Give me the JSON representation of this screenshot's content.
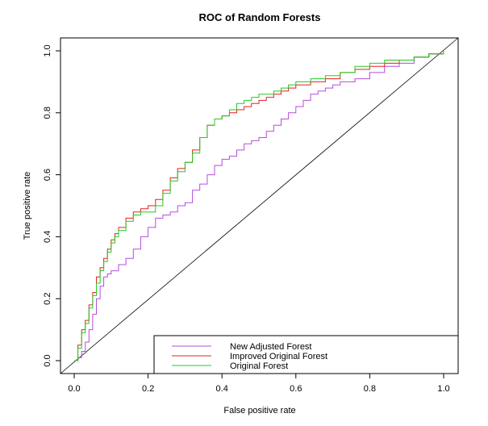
{
  "chart_data": {
    "type": "line",
    "title": "ROC of Random Forests",
    "xlabel": "False positive rate",
    "ylabel": "True positive rate",
    "xlim": [
      0,
      1
    ],
    "ylim": [
      0,
      1
    ],
    "xticks": [
      "0.0",
      "0.2",
      "0.4",
      "0.6",
      "0.8",
      "1.0"
    ],
    "yticks": [
      "0.0",
      "0.2",
      "0.4",
      "0.6",
      "0.8",
      "1.0"
    ],
    "grid": false,
    "legend_position": "bottom-right",
    "reference_line": {
      "x": [
        0,
        1
      ],
      "y": [
        0,
        1
      ],
      "color": "#000000"
    },
    "series": [
      {
        "name": "New Adjusted Forest",
        "color": "#b44ddb",
        "x": [
          0,
          0.01,
          0.02,
          0.03,
          0.04,
          0.05,
          0.06,
          0.07,
          0.08,
          0.09,
          0.1,
          0.12,
          0.14,
          0.16,
          0.18,
          0.2,
          0.22,
          0.24,
          0.26,
          0.28,
          0.3,
          0.32,
          0.34,
          0.36,
          0.38,
          0.4,
          0.42,
          0.44,
          0.46,
          0.48,
          0.5,
          0.52,
          0.54,
          0.56,
          0.58,
          0.6,
          0.62,
          0.64,
          0.66,
          0.68,
          0.7,
          0.72,
          0.74,
          0.76,
          0.8,
          0.84,
          0.88,
          0.92,
          0.96,
          1.0
        ],
        "y": [
          0,
          0.01,
          0.03,
          0.06,
          0.1,
          0.15,
          0.2,
          0.24,
          0.27,
          0.28,
          0.29,
          0.31,
          0.33,
          0.36,
          0.4,
          0.43,
          0.46,
          0.47,
          0.48,
          0.5,
          0.51,
          0.55,
          0.57,
          0.6,
          0.63,
          0.65,
          0.66,
          0.68,
          0.7,
          0.71,
          0.72,
          0.74,
          0.76,
          0.78,
          0.8,
          0.82,
          0.84,
          0.86,
          0.87,
          0.88,
          0.89,
          0.9,
          0.9,
          0.91,
          0.93,
          0.95,
          0.96,
          0.98,
          0.99,
          1.0
        ]
      },
      {
        "name": "Improved Original Forest",
        "color": "#e52020",
        "x": [
          0,
          0.01,
          0.02,
          0.03,
          0.04,
          0.05,
          0.06,
          0.07,
          0.08,
          0.09,
          0.1,
          0.11,
          0.12,
          0.14,
          0.16,
          0.18,
          0.2,
          0.22,
          0.24,
          0.26,
          0.28,
          0.3,
          0.32,
          0.34,
          0.36,
          0.38,
          0.4,
          0.42,
          0.44,
          0.46,
          0.48,
          0.5,
          0.52,
          0.54,
          0.56,
          0.58,
          0.6,
          0.64,
          0.68,
          0.72,
          0.76,
          0.8,
          0.84,
          0.88,
          0.92,
          0.96,
          1.0
        ],
        "y": [
          0,
          0.05,
          0.1,
          0.13,
          0.18,
          0.22,
          0.27,
          0.3,
          0.33,
          0.36,
          0.39,
          0.41,
          0.43,
          0.46,
          0.48,
          0.49,
          0.5,
          0.52,
          0.55,
          0.59,
          0.62,
          0.64,
          0.68,
          0.72,
          0.76,
          0.78,
          0.79,
          0.8,
          0.81,
          0.82,
          0.83,
          0.84,
          0.85,
          0.86,
          0.87,
          0.88,
          0.89,
          0.9,
          0.91,
          0.93,
          0.94,
          0.95,
          0.96,
          0.97,
          0.98,
          0.99,
          1.0
        ]
      },
      {
        "name": "Original Forest",
        "color": "#22cc22",
        "x": [
          0,
          0.01,
          0.02,
          0.03,
          0.04,
          0.05,
          0.06,
          0.07,
          0.08,
          0.09,
          0.1,
          0.11,
          0.12,
          0.14,
          0.16,
          0.18,
          0.2,
          0.22,
          0.24,
          0.26,
          0.28,
          0.3,
          0.32,
          0.34,
          0.36,
          0.38,
          0.4,
          0.42,
          0.44,
          0.46,
          0.48,
          0.5,
          0.52,
          0.54,
          0.56,
          0.58,
          0.6,
          0.64,
          0.68,
          0.72,
          0.76,
          0.8,
          0.84,
          0.88,
          0.92,
          0.96,
          1.0
        ],
        "y": [
          0,
          0.04,
          0.09,
          0.12,
          0.17,
          0.21,
          0.25,
          0.29,
          0.32,
          0.35,
          0.38,
          0.4,
          0.42,
          0.45,
          0.47,
          0.48,
          0.48,
          0.5,
          0.54,
          0.58,
          0.61,
          0.64,
          0.67,
          0.72,
          0.76,
          0.78,
          0.79,
          0.81,
          0.83,
          0.84,
          0.85,
          0.86,
          0.86,
          0.87,
          0.88,
          0.89,
          0.9,
          0.91,
          0.92,
          0.93,
          0.95,
          0.96,
          0.97,
          0.97,
          0.98,
          0.99,
          1.0
        ]
      }
    ]
  }
}
